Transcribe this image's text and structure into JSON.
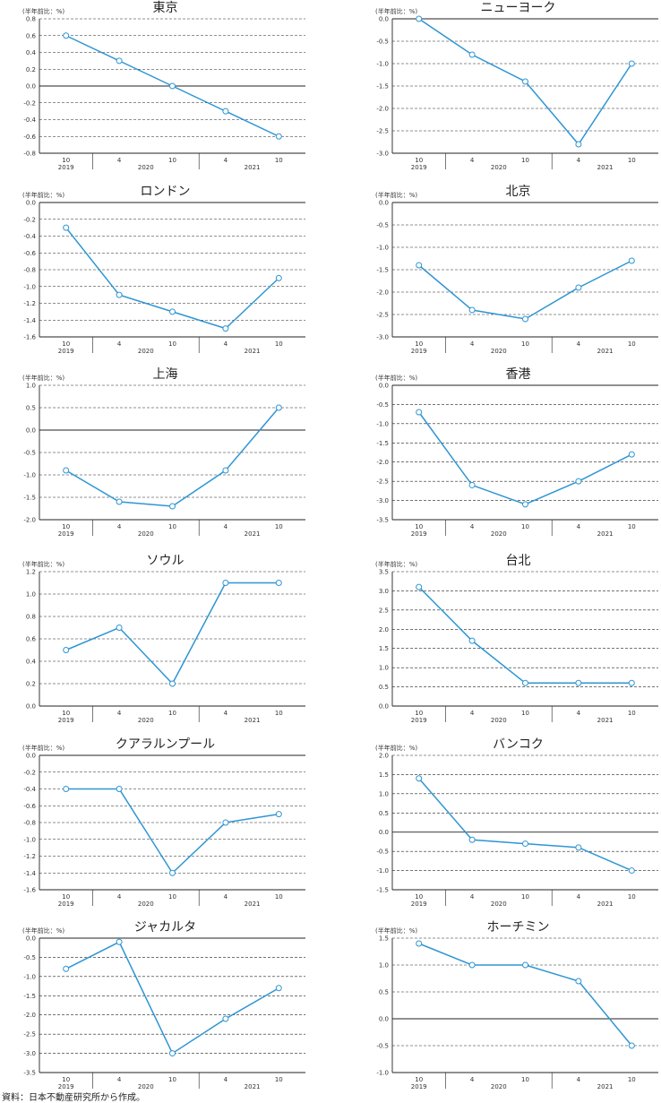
{
  "source_note": "資料：日本不動産研究所から作成。",
  "chart_data": [
    {
      "type": "line",
      "title": "東京",
      "unit_label": "(半年前比：%)",
      "ylim": [
        -0.8,
        0.8
      ],
      "yticks": [
        0.8,
        0.6,
        0.4,
        0.2,
        0.0,
        -0.2,
        -0.4,
        -0.6,
        -0.8
      ],
      "ytick_labels": [
        "0.8",
        "0.6",
        "0.4",
        "0.2",
        "0.0",
        "-0.2",
        "-0.4",
        "-0.6",
        "-0.8"
      ],
      "zero": 0,
      "xtick_labels": [
        "10",
        "4",
        "10",
        "4",
        "10"
      ],
      "year_labels": [
        "2019",
        "2020",
        "2021"
      ],
      "values": [
        0.6,
        0.3,
        0.0,
        -0.3,
        -0.6
      ]
    },
    {
      "type": "line",
      "title": "ニューヨーク",
      "unit_label": "(半年前比：%)",
      "ylim": [
        -3.0,
        0.0
      ],
      "yticks": [
        0.0,
        -0.5,
        -1.0,
        -1.5,
        -2.0,
        -2.5,
        -3.0
      ],
      "ytick_labels": [
        "0.0",
        "-0.5",
        "-1.0",
        "-1.5",
        "-2.0",
        "-2.5",
        "-3.0"
      ],
      "zero": 0,
      "xtick_labels": [
        "10",
        "4",
        "10",
        "4",
        "10"
      ],
      "year_labels": [
        "2019",
        "2020",
        "2021"
      ],
      "values": [
        0.0,
        -0.8,
        -1.4,
        -2.8,
        -1.0
      ]
    },
    {
      "type": "line",
      "title": "ロンドン",
      "unit_label": "(半年前比：%)",
      "ylim": [
        -1.6,
        0.0
      ],
      "yticks": [
        0.0,
        -0.2,
        -0.4,
        -0.6,
        -0.8,
        -1.0,
        -1.2,
        -1.4,
        -1.6
      ],
      "ytick_labels": [
        "0.0",
        "-0.2",
        "-0.4",
        "-0.6",
        "-0.8",
        "-1.0",
        "-1.2",
        "-1.4",
        "-1.6"
      ],
      "zero": 0,
      "xtick_labels": [
        "10",
        "4",
        "10",
        "4",
        "10"
      ],
      "year_labels": [
        "2019",
        "2020",
        "2021"
      ],
      "values": [
        -0.3,
        -1.1,
        -1.3,
        -1.5,
        -0.9
      ]
    },
    {
      "type": "line",
      "title": "北京",
      "unit_label": "(半年前比：%)",
      "ylim": [
        -3.0,
        0.0
      ],
      "yticks": [
        0.0,
        -0.5,
        -1.0,
        -1.5,
        -2.0,
        -2.5,
        -3.0
      ],
      "ytick_labels": [
        "0.0",
        "-0.5",
        "-1.0",
        "-1.5",
        "-2.0",
        "-2.5",
        "-3.0"
      ],
      "zero": 0,
      "xtick_labels": [
        "10",
        "4",
        "10",
        "4",
        "10"
      ],
      "year_labels": [
        "2019",
        "2020",
        "2021"
      ],
      "values": [
        -1.4,
        -2.4,
        -2.6,
        -1.9,
        -1.3
      ]
    },
    {
      "type": "line",
      "title": "上海",
      "unit_label": "(半年前比：%)",
      "ylim": [
        -2.0,
        1.0
      ],
      "yticks": [
        1.0,
        0.5,
        0.0,
        -0.5,
        -1.0,
        -1.5,
        -2.0
      ],
      "ytick_labels": [
        "1.0",
        "0.5",
        "0.0",
        "-0.5",
        "-1.0",
        "-1.5",
        "-2.0"
      ],
      "zero": 0,
      "xtick_labels": [
        "10",
        "4",
        "10",
        "4",
        "10"
      ],
      "year_labels": [
        "2019",
        "2020",
        "2021"
      ],
      "values": [
        -0.9,
        -1.6,
        -1.7,
        -0.9,
        0.5
      ]
    },
    {
      "type": "line",
      "title": "香港",
      "unit_label": "(半年前比：%)",
      "ylim": [
        -3.5,
        0.0
      ],
      "yticks": [
        0.0,
        -0.5,
        -1.0,
        -1.5,
        -2.0,
        -2.5,
        -3.0,
        -3.5
      ],
      "ytick_labels": [
        "0.0",
        "-0.5",
        "-1.0",
        "-1.5",
        "-2.0",
        "-2.5",
        "-3.0",
        "-3.5"
      ],
      "zero": 0,
      "xtick_labels": [
        "10",
        "4",
        "10",
        "4",
        "10"
      ],
      "year_labels": [
        "2019",
        "2020",
        "2021"
      ],
      "values": [
        -0.7,
        -2.6,
        -3.1,
        -2.5,
        -1.8
      ]
    },
    {
      "type": "line",
      "title": "ソウル",
      "unit_label": "(半年前比：%)",
      "ylim": [
        0.0,
        1.2
      ],
      "yticks": [
        1.2,
        1.0,
        0.8,
        0.6,
        0.4,
        0.2,
        0.0
      ],
      "ytick_labels": [
        "1.2",
        "1.0",
        "0.8",
        "0.6",
        "0.4",
        "0.2",
        "0.0"
      ],
      "zero": 0,
      "xtick_labels": [
        "10",
        "4",
        "10",
        "4",
        "10"
      ],
      "year_labels": [
        "2019",
        "2020",
        "2021"
      ],
      "values": [
        0.5,
        0.7,
        0.2,
        1.1,
        1.1
      ]
    },
    {
      "type": "line",
      "title": "台北",
      "unit_label": "(半年前比：%)",
      "ylim": [
        0.0,
        3.5
      ],
      "yticks": [
        3.5,
        3.0,
        2.5,
        2.0,
        1.5,
        1.0,
        0.5,
        0.0
      ],
      "ytick_labels": [
        "3.5",
        "3.0",
        "2.5",
        "2.0",
        "1.5",
        "1.0",
        "0.5",
        "0.0"
      ],
      "zero": 0,
      "xtick_labels": [
        "10",
        "4",
        "10",
        "4",
        "10"
      ],
      "year_labels": [
        "2019",
        "2020",
        "2021"
      ],
      "values": [
        3.1,
        1.7,
        0.6,
        0.6,
        0.6
      ]
    },
    {
      "type": "line",
      "title": "クアラルンプール",
      "unit_label": "(半年前比：%)",
      "ylim": [
        -1.6,
        0.0
      ],
      "yticks": [
        0.0,
        -0.2,
        -0.4,
        -0.6,
        -0.8,
        -1.0,
        -1.2,
        -1.4,
        -1.6
      ],
      "ytick_labels": [
        "0.0",
        "-0.2",
        "-0.4",
        "-0.6",
        "-0.8",
        "-1.0",
        "-1.2",
        "-1.4",
        "-1.6"
      ],
      "zero": 0,
      "xtick_labels": [
        "10",
        "4",
        "10",
        "4",
        "10"
      ],
      "year_labels": [
        "2019",
        "2020",
        "2021"
      ],
      "values": [
        -0.4,
        -0.4,
        -1.4,
        -0.8,
        -0.7
      ]
    },
    {
      "type": "line",
      "title": "バンコク",
      "unit_label": "(半年前比：%)",
      "ylim": [
        -1.5,
        2.0
      ],
      "yticks": [
        2.0,
        1.5,
        1.0,
        0.5,
        0.0,
        -0.5,
        -1.0,
        -1.5
      ],
      "ytick_labels": [
        "2.0",
        "1.5",
        "1.0",
        "0.5",
        "0.0",
        "-0.5",
        "-1.0",
        "-1.5"
      ],
      "zero": 0,
      "xtick_labels": [
        "10",
        "4",
        "10",
        "4",
        "10"
      ],
      "year_labels": [
        "2019",
        "2020",
        "2021"
      ],
      "values": [
        1.4,
        -0.2,
        -0.3,
        -0.4,
        -1.0
      ]
    },
    {
      "type": "line",
      "title": "ジャカルタ",
      "unit_label": "(半年前比：%)",
      "ylim": [
        -3.5,
        0.0
      ],
      "yticks": [
        0.0,
        -0.5,
        -1.0,
        -1.5,
        -2.0,
        -2.5,
        -3.0,
        -3.5
      ],
      "ytick_labels": [
        "0.0",
        "-0.5",
        "-1.0",
        "-1.5",
        "-2.0",
        "-2.5",
        "-3.0",
        "-3.5"
      ],
      "zero": 0,
      "xtick_labels": [
        "10",
        "4",
        "10",
        "4",
        "10"
      ],
      "year_labels": [
        "2019",
        "2020",
        "2021"
      ],
      "values": [
        -0.8,
        -0.1,
        -3.0,
        -2.1,
        -1.3
      ]
    },
    {
      "type": "line",
      "title": "ホーチミン",
      "unit_label": "(半年前比：%)",
      "ylim": [
        -1.0,
        1.5
      ],
      "yticks": [
        1.5,
        1.0,
        0.5,
        0.0,
        -0.5,
        -1.0
      ],
      "ytick_labels": [
        "1.5",
        "1.0",
        "0.5",
        "0.0",
        "-0.5",
        "-1.0"
      ],
      "zero": 0,
      "xtick_labels": [
        "10",
        "4",
        "10",
        "4",
        "10"
      ],
      "year_labels": [
        "2019",
        "2020",
        "2021"
      ],
      "values": [
        1.4,
        1.0,
        1.0,
        0.7,
        -0.5
      ]
    }
  ],
  "style": {
    "line_color": "#2e95d3",
    "grid_color": "#222222",
    "axis_color": "#222222"
  }
}
